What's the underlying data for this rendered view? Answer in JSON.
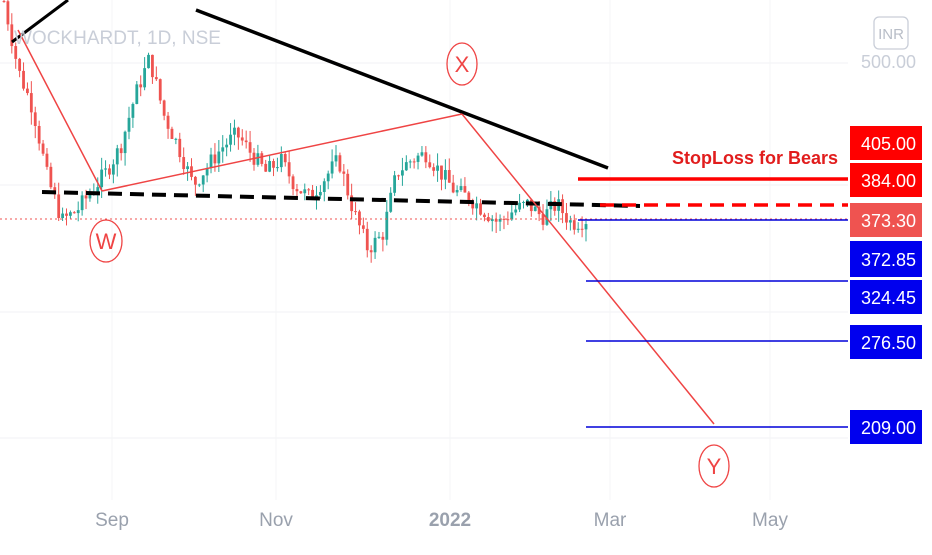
{
  "chart_header": {
    "symbol": "WOCKHARDT, 1D, NSE",
    "currency": "INR",
    "price_scale_label": "500.00"
  },
  "time_axis": [
    "Sep",
    "Nov",
    "2022",
    "Mar",
    "May"
  ],
  "colors": {
    "up_candle": "#26a69a",
    "down_candle": "#ef5350",
    "trend_line": "#000000",
    "wave_line": "#ef4444",
    "target_line": "#0000d8",
    "stop_line": "#ff0000",
    "last_price_line": "#ef5350"
  },
  "chart_data": {
    "type": "candlestick",
    "title": "WOCKHARDT, 1D, NSE",
    "x_axis_ticks": [
      "Sep",
      "Nov",
      "2022",
      "Mar",
      "May"
    ],
    "y_axis_ticks": [
      500
    ],
    "y_range_approx": [
      180,
      560
    ],
    "series": [
      {
        "name": "WOCKHARDT",
        "approx_close_path": [
          545,
          490,
          460,
          405,
          372,
          380,
          395,
          410,
          430,
          470,
          500,
          455,
          430,
          400,
          415,
          430,
          440,
          425,
          410,
          420,
          400,
          390,
          405,
          420,
          380,
          350,
          360,
          410,
          420,
          425,
          410,
          395,
          390,
          380,
          370,
          380,
          385,
          375,
          385,
          370,
          372.85
        ]
      }
    ],
    "price_levels": [
      {
        "label": "405.00",
        "value": 405.0,
        "role": "stop_loss",
        "color": "#ff0000"
      },
      {
        "label": "384.00",
        "value": 384.0,
        "role": "neckline",
        "color": "#ff0000"
      },
      {
        "label": "373.30",
        "value": 373.3,
        "role": "last_price",
        "color": "#ef5350"
      },
      {
        "label": "372.85",
        "value": 372.85,
        "role": "target",
        "color": "#0000d8"
      },
      {
        "label": "324.45",
        "value": 324.45,
        "role": "target",
        "color": "#0000d8"
      },
      {
        "label": "276.50",
        "value": 276.5,
        "role": "target",
        "color": "#0000d8"
      },
      {
        "label": "209.00",
        "value": 209.0,
        "role": "target",
        "color": "#0000d8"
      }
    ],
    "annotations": [
      {
        "text": "StopLoss for Bears"
      },
      {
        "text": "X"
      },
      {
        "text": "W"
      },
      {
        "text": "Y"
      }
    ]
  }
}
